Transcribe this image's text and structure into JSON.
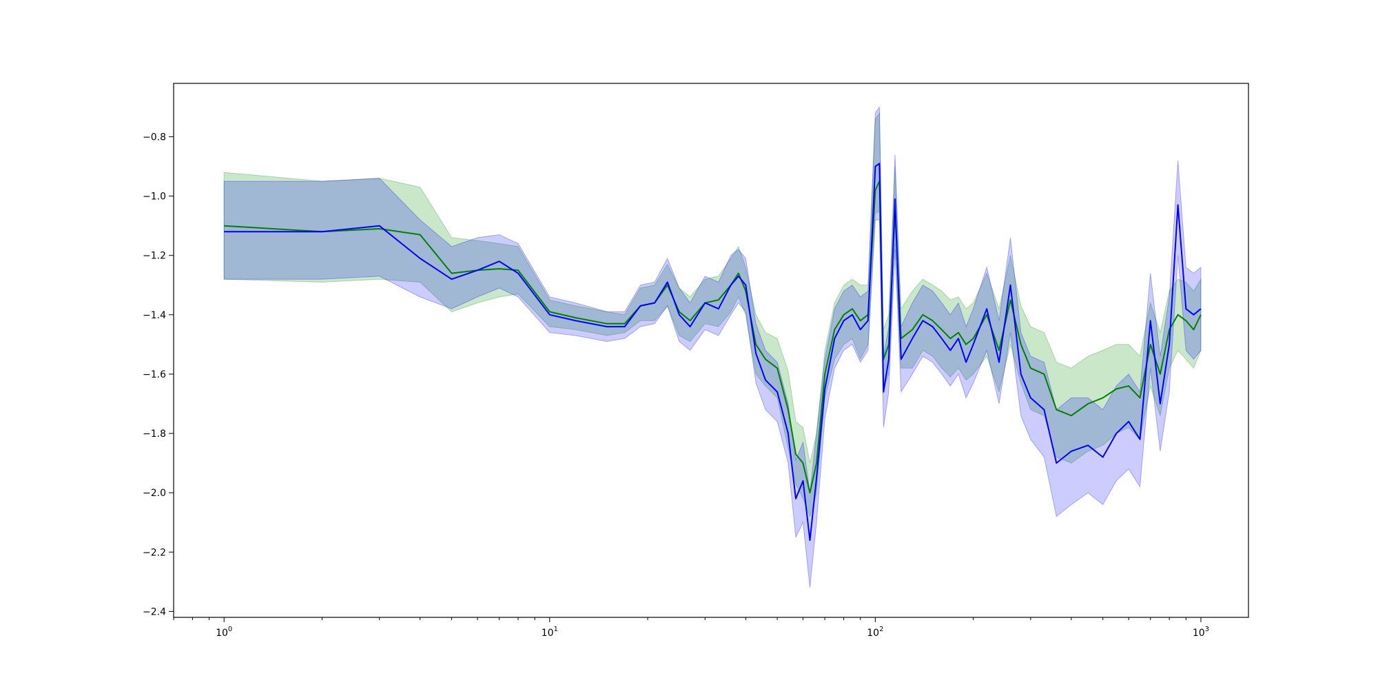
{
  "chart_data": {
    "type": "line",
    "title": "",
    "xlabel": "",
    "ylabel": "",
    "x_scale": "log",
    "xlim": [
      0.7,
      1400
    ],
    "ylim": [
      -2.42,
      -0.62
    ],
    "grid": false,
    "x_ticks": [
      {
        "value": 1,
        "base": "10",
        "exp": "0"
      },
      {
        "value": 10,
        "base": "10",
        "exp": "1"
      },
      {
        "value": 100,
        "base": "10",
        "exp": "2"
      },
      {
        "value": 1000,
        "base": "10",
        "exp": "3"
      }
    ],
    "y_ticks": [
      {
        "value": -0.8,
        "label": "−0.8"
      },
      {
        "value": -1.0,
        "label": "−1.0"
      },
      {
        "value": -1.2,
        "label": "−1.2"
      },
      {
        "value": -1.4,
        "label": "−1.4"
      },
      {
        "value": -1.6,
        "label": "−1.6"
      },
      {
        "value": -1.8,
        "label": "−1.8"
      },
      {
        "value": -2.0,
        "label": "−2.0"
      },
      {
        "value": -2.2,
        "label": "−2.2"
      },
      {
        "value": -2.4,
        "label": "−2.4"
      }
    ],
    "series": [
      {
        "color": "#008000",
        "band_color": "#2ca02c",
        "band_opacity": 0.25,
        "x": [
          1,
          2,
          3,
          4,
          5,
          6,
          7,
          8,
          10,
          12,
          15,
          17,
          19,
          21,
          23,
          25,
          27,
          30,
          33,
          36,
          38,
          40,
          43,
          46,
          50,
          54,
          57,
          60,
          63,
          66,
          70,
          75,
          80,
          85,
          90,
          95,
          100,
          103,
          106,
          110,
          115,
          120,
          130,
          140,
          150,
          160,
          170,
          180,
          190,
          200,
          220,
          240,
          260,
          280,
          300,
          330,
          360,
          400,
          450,
          500,
          550,
          600,
          650,
          700,
          750,
          800,
          850,
          900,
          950,
          1000
        ],
        "y": [
          -1.1,
          -1.12,
          -1.11,
          -1.13,
          -1.26,
          -1.25,
          -1.245,
          -1.25,
          -1.39,
          -1.41,
          -1.43,
          -1.43,
          -1.37,
          -1.36,
          -1.3,
          -1.39,
          -1.42,
          -1.36,
          -1.35,
          -1.3,
          -1.26,
          -1.32,
          -1.5,
          -1.55,
          -1.58,
          -1.72,
          -1.87,
          -1.9,
          -2.0,
          -1.9,
          -1.6,
          -1.45,
          -1.4,
          -1.38,
          -1.42,
          -1.4,
          -0.98,
          -0.95,
          -1.55,
          -1.5,
          -1.05,
          -1.48,
          -1.45,
          -1.4,
          -1.42,
          -1.45,
          -1.48,
          -1.46,
          -1.5,
          -1.48,
          -1.4,
          -1.52,
          -1.35,
          -1.5,
          -1.58,
          -1.6,
          -1.72,
          -1.74,
          -1.7,
          -1.68,
          -1.65,
          -1.64,
          -1.68,
          -1.5,
          -1.6,
          -1.45,
          -1.4,
          -1.42,
          -1.45,
          -1.4
        ],
        "lower": [
          -1.28,
          -1.29,
          -1.28,
          -1.29,
          -1.39,
          -1.36,
          -1.34,
          -1.33,
          -1.44,
          -1.45,
          -1.47,
          -1.46,
          -1.42,
          -1.42,
          -1.37,
          -1.47,
          -1.49,
          -1.43,
          -1.44,
          -1.39,
          -1.34,
          -1.4,
          -1.6,
          -1.64,
          -1.68,
          -1.85,
          -1.97,
          -2.02,
          -2.08,
          -2.0,
          -1.68,
          -1.55,
          -1.5,
          -1.48,
          -1.55,
          -1.5,
          -1.06,
          -1.05,
          -1.65,
          -1.6,
          -1.16,
          -1.58,
          -1.58,
          -1.52,
          -1.54,
          -1.58,
          -1.61,
          -1.58,
          -1.62,
          -1.6,
          -1.54,
          -1.66,
          -1.5,
          -1.63,
          -1.72,
          -1.74,
          -1.88,
          -1.9,
          -1.86,
          -1.84,
          -1.8,
          -1.78,
          -1.82,
          -1.64,
          -1.74,
          -1.58,
          -1.52,
          -1.55,
          -1.58,
          -1.52
        ],
        "upper": [
          -0.92,
          -0.95,
          -0.94,
          -0.97,
          -1.14,
          -1.15,
          -1.16,
          -1.17,
          -1.35,
          -1.37,
          -1.39,
          -1.4,
          -1.31,
          -1.3,
          -1.23,
          -1.31,
          -1.34,
          -1.28,
          -1.27,
          -1.21,
          -1.17,
          -1.24,
          -1.4,
          -1.46,
          -1.48,
          -1.59,
          -1.76,
          -1.78,
          -1.9,
          -1.8,
          -1.52,
          -1.36,
          -1.3,
          -1.28,
          -1.3,
          -1.3,
          -0.74,
          -0.72,
          -1.45,
          -1.4,
          -0.9,
          -1.38,
          -1.32,
          -1.28,
          -1.3,
          -1.32,
          -1.35,
          -1.34,
          -1.38,
          -1.36,
          -1.26,
          -1.38,
          -1.2,
          -1.37,
          -1.44,
          -1.46,
          -1.56,
          -1.58,
          -1.54,
          -1.52,
          -1.5,
          -1.5,
          -1.54,
          -1.36,
          -1.46,
          -1.32,
          -1.28,
          -1.29,
          -1.32,
          -1.28
        ]
      },
      {
        "color": "#0000ff",
        "band_color": "#0000ff",
        "band_opacity": 0.2,
        "x": [
          1,
          2,
          3,
          4,
          5,
          6,
          7,
          8,
          10,
          12,
          15,
          17,
          19,
          21,
          23,
          25,
          27,
          30,
          33,
          36,
          38,
          40,
          43,
          46,
          50,
          54,
          57,
          60,
          63,
          66,
          70,
          75,
          80,
          85,
          90,
          95,
          100,
          103,
          106,
          110,
          115,
          120,
          130,
          140,
          150,
          160,
          170,
          180,
          190,
          200,
          220,
          240,
          260,
          280,
          300,
          330,
          360,
          400,
          450,
          500,
          550,
          600,
          650,
          700,
          750,
          800,
          850,
          900,
          950,
          1000
        ],
        "y": [
          -1.12,
          -1.12,
          -1.1,
          -1.21,
          -1.28,
          -1.25,
          -1.22,
          -1.26,
          -1.4,
          -1.42,
          -1.44,
          -1.44,
          -1.37,
          -1.36,
          -1.29,
          -1.4,
          -1.44,
          -1.36,
          -1.38,
          -1.3,
          -1.27,
          -1.3,
          -1.53,
          -1.62,
          -1.66,
          -1.8,
          -2.02,
          -1.96,
          -2.16,
          -1.95,
          -1.65,
          -1.48,
          -1.42,
          -1.4,
          -1.45,
          -1.42,
          -0.9,
          -0.89,
          -1.66,
          -1.55,
          -1.01,
          -1.55,
          -1.48,
          -1.42,
          -1.44,
          -1.48,
          -1.52,
          -1.48,
          -1.56,
          -1.5,
          -1.38,
          -1.56,
          -1.3,
          -1.6,
          -1.68,
          -1.72,
          -1.9,
          -1.86,
          -1.84,
          -1.88,
          -1.8,
          -1.76,
          -1.82,
          -1.42,
          -1.7,
          -1.5,
          -1.03,
          -1.38,
          -1.4,
          -1.38
        ],
        "lower": [
          -1.28,
          -1.28,
          -1.27,
          -1.34,
          -1.38,
          -1.34,
          -1.31,
          -1.34,
          -1.46,
          -1.47,
          -1.49,
          -1.48,
          -1.44,
          -1.43,
          -1.37,
          -1.49,
          -1.52,
          -1.45,
          -1.47,
          -1.4,
          -1.36,
          -1.39,
          -1.63,
          -1.72,
          -1.76,
          -1.9,
          -2.15,
          -2.1,
          -2.32,
          -2.1,
          -1.75,
          -1.58,
          -1.52,
          -1.5,
          -1.56,
          -1.52,
          -1.08,
          -1.08,
          -1.78,
          -1.66,
          -1.18,
          -1.66,
          -1.6,
          -1.54,
          -1.56,
          -1.6,
          -1.64,
          -1.6,
          -1.68,
          -1.63,
          -1.52,
          -1.7,
          -1.46,
          -1.74,
          -1.82,
          -1.88,
          -2.08,
          -2.04,
          -2.0,
          -2.04,
          -1.96,
          -1.92,
          -1.98,
          -1.58,
          -1.86,
          -1.66,
          -1.2,
          -1.52,
          -1.55,
          -1.52
        ],
        "upper": [
          -0.95,
          -0.95,
          -0.94,
          -1.08,
          -1.17,
          -1.14,
          -1.13,
          -1.16,
          -1.34,
          -1.36,
          -1.39,
          -1.39,
          -1.3,
          -1.29,
          -1.21,
          -1.31,
          -1.36,
          -1.27,
          -1.29,
          -1.2,
          -1.18,
          -1.21,
          -1.43,
          -1.52,
          -1.56,
          -1.7,
          -1.89,
          -1.83,
          -2.0,
          -1.8,
          -1.55,
          -1.38,
          -1.32,
          -1.3,
          -1.34,
          -1.32,
          -0.72,
          -0.7,
          -1.54,
          -1.44,
          -0.86,
          -1.44,
          -1.36,
          -1.3,
          -1.32,
          -1.36,
          -1.4,
          -1.36,
          -1.44,
          -1.38,
          -1.24,
          -1.42,
          -1.14,
          -1.46,
          -1.54,
          -1.56,
          -1.72,
          -1.68,
          -1.68,
          -1.72,
          -1.64,
          -1.6,
          -1.66,
          -1.26,
          -1.54,
          -1.34,
          -0.88,
          -1.24,
          -1.26,
          -1.24
        ]
      }
    ]
  }
}
